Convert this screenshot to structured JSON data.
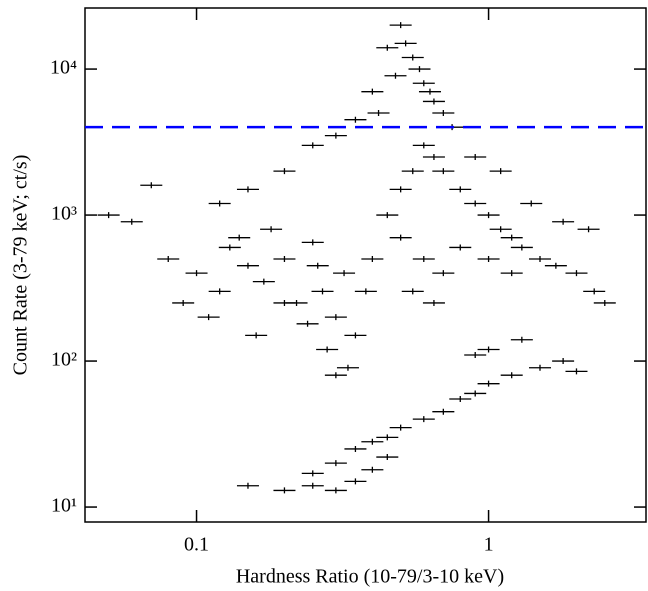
{
  "chart_data": {
    "type": "scatter",
    "xlabel": "Hardness Ratio (10-79/3-10 keV)",
    "ylabel": "Count Rate (3-79 keV; ct/s)",
    "xscale": "log",
    "yscale": "log",
    "xlim": [
      0.0415,
      3.46
    ],
    "ylim": [
      7.9,
      26200
    ],
    "xticks": [
      0.1,
      1
    ],
    "yticks": [
      {
        "value": 10,
        "label": "10¹"
      },
      {
        "value": 100,
        "label": "10²"
      },
      {
        "value": 1000,
        "label": "10³"
      },
      {
        "value": 10000,
        "label": "10⁴"
      }
    ],
    "hline": {
      "value": 4000,
      "color": "#0000ff",
      "dashed": true
    },
    "series": [
      {
        "color": "#000000",
        "x": [
          0.08,
          0.1,
          0.12,
          0.13,
          0.15,
          0.17,
          0.2,
          0.22,
          0.25,
          0.27,
          0.3,
          0.32,
          0.35,
          0.11,
          0.14,
          0.18,
          0.24,
          0.28,
          0.33,
          0.3,
          0.09,
          0.16,
          0.06,
          0.05,
          0.07,
          0.12,
          0.2,
          0.26,
          0.38,
          0.4,
          0.45,
          0.5,
          0.55,
          0.6,
          0.65,
          0.7,
          0.8,
          0.9,
          1.0,
          1.1,
          1.2,
          1.3,
          1.5,
          1.7,
          2.0,
          2.3,
          2.5,
          0.5,
          0.6,
          0.7,
          0.8,
          1.0,
          1.2,
          0.9,
          1.1,
          1.4,
          1.8,
          2.2,
          0.55,
          0.65,
          0.5,
          0.52,
          0.55,
          0.58,
          0.6,
          0.63,
          0.65,
          0.7,
          0.75,
          0.45,
          0.48,
          0.4,
          0.42,
          0.35,
          0.3,
          0.25,
          0.2,
          0.15,
          0.15,
          0.2,
          0.25,
          0.3,
          0.35,
          0.4,
          0.3,
          0.35,
          0.4,
          0.45,
          0.5,
          0.6,
          0.7,
          0.8,
          0.9,
          1.0,
          1.2,
          1.5,
          1.8,
          2.0,
          1.0,
          1.3,
          0.9,
          0.25,
          0.45
        ],
        "values": [
          500,
          400,
          300,
          600,
          450,
          350,
          500,
          250,
          650,
          300,
          200,
          400,
          150,
          200,
          700,
          800,
          180,
          120,
          90,
          80,
          250,
          150,
          900,
          1000,
          1600,
          1200,
          250,
          450,
          300,
          500,
          1000,
          1500,
          2000,
          3000,
          2500,
          2000,
          1500,
          1200,
          1000,
          800,
          700,
          600,
          500,
          450,
          400,
          300,
          250,
          700,
          500,
          400,
          600,
          500,
          400,
          2500,
          2000,
          1200,
          900,
          800,
          300,
          250,
          20000,
          15000,
          12000,
          10000,
          8000,
          7000,
          6000,
          5000,
          4000,
          14000,
          9000,
          7000,
          5000,
          4500,
          3500,
          3000,
          2000,
          1500,
          14,
          13,
          14,
          13,
          15,
          18,
          20,
          25,
          28,
          30,
          35,
          40,
          45,
          55,
          60,
          70,
          80,
          90,
          100,
          85,
          120,
          140,
          110,
          17,
          22
        ]
      }
    ]
  }
}
